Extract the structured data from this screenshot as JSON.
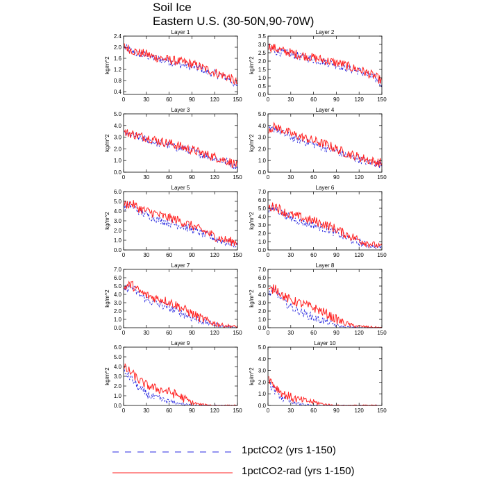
{
  "title": "Soil Ice",
  "subtitle": "Eastern U.S. (30-50N,90-70W)",
  "legend": {
    "series1": "1pctCO2 (yrs 1-150)",
    "series2": "1pctCO2-rad (yrs 1-150)",
    "series1_color": "#2a2ae0",
    "series2_color": "#ff2020",
    "series1_style": "dashed",
    "series2_style": "solid",
    "placement": "bottom"
  },
  "chart_data": [
    {
      "type": "line",
      "title": "Layer 1",
      "ylabel": "kg/m^2",
      "xlabel": "",
      "xlim": [
        0,
        150
      ],
      "ylim": [
        0.3,
        2.4
      ],
      "xticks": [
        0,
        30,
        60,
        90,
        120,
        150
      ],
      "yticks": [
        0.4,
        0.8,
        1.2,
        1.6,
        2.0,
        2.4
      ],
      "ytick_labels": [
        "0.4",
        "0.8",
        "1.2",
        "1.6",
        "2.0",
        "2.4"
      ],
      "x": [
        0,
        10,
        20,
        30,
        40,
        50,
        60,
        70,
        80,
        90,
        100,
        110,
        120,
        130,
        140,
        150
      ],
      "series": [
        {
          "name": "1pctCO2 (yrs 1-150)",
          "values": [
            2.0,
            1.85,
            1.75,
            1.7,
            1.6,
            1.55,
            1.5,
            1.4,
            1.35,
            1.3,
            1.25,
            1.1,
            1.05,
            0.95,
            0.85,
            0.55
          ]
        },
        {
          "name": "1pctCO2-rad (yrs 1-150)",
          "values": [
            2.05,
            1.9,
            1.8,
            1.75,
            1.65,
            1.6,
            1.55,
            1.5,
            1.45,
            1.4,
            1.3,
            1.2,
            1.1,
            1.0,
            0.9,
            0.7
          ]
        }
      ]
    },
    {
      "type": "line",
      "title": "Layer 2",
      "ylabel": "kg/m^2",
      "xlabel": "",
      "xlim": [
        0,
        150
      ],
      "ylim": [
        0,
        3.5
      ],
      "xticks": [
        0,
        30,
        60,
        90,
        120,
        150
      ],
      "yticks": [
        0,
        0.5,
        1,
        1.5,
        2,
        2.5,
        3,
        3.5
      ],
      "ytick_labels": [
        "0.0",
        "0.5",
        "1.0",
        "1.5",
        "2.0",
        "2.5",
        "3.0",
        "3.5"
      ],
      "x": [
        0,
        10,
        20,
        30,
        40,
        50,
        60,
        70,
        80,
        90,
        100,
        110,
        120,
        130,
        140,
        150
      ],
      "series": [
        {
          "name": "1pctCO2 (yrs 1-150)",
          "values": [
            2.8,
            2.6,
            2.5,
            2.4,
            2.3,
            2.2,
            2.1,
            2.0,
            1.9,
            1.8,
            1.6,
            1.5,
            1.4,
            1.2,
            1.0,
            0.6
          ]
        },
        {
          "name": "1pctCO2-rad (yrs 1-150)",
          "values": [
            2.9,
            2.75,
            2.6,
            2.5,
            2.4,
            2.3,
            2.2,
            2.1,
            2.0,
            1.9,
            1.8,
            1.6,
            1.5,
            1.3,
            1.1,
            0.8
          ]
        }
      ]
    },
    {
      "type": "line",
      "title": "Layer 3",
      "ylabel": "kg/m^2",
      "xlabel": "",
      "xlim": [
        0,
        150
      ],
      "ylim": [
        0,
        5
      ],
      "xticks": [
        0,
        30,
        60,
        90,
        120,
        150
      ],
      "yticks": [
        0,
        1,
        2,
        3,
        4,
        5
      ],
      "ytick_labels": [
        "0.0",
        "1.0",
        "2.0",
        "3.0",
        "4.0",
        "5.0"
      ],
      "x": [
        0,
        10,
        20,
        30,
        40,
        50,
        60,
        70,
        80,
        90,
        100,
        110,
        120,
        130,
        140,
        150
      ],
      "series": [
        {
          "name": "1pctCO2 (yrs 1-150)",
          "values": [
            3.3,
            3.2,
            3.0,
            2.8,
            2.6,
            2.4,
            2.3,
            2.1,
            2.0,
            1.8,
            1.6,
            1.4,
            1.2,
            1.0,
            0.8,
            0.4
          ]
        },
        {
          "name": "1pctCO2-rad (yrs 1-150)",
          "values": [
            3.4,
            3.3,
            3.1,
            3.0,
            2.8,
            2.6,
            2.5,
            2.3,
            2.1,
            1.9,
            1.7,
            1.5,
            1.3,
            1.1,
            0.9,
            0.6
          ]
        }
      ]
    },
    {
      "type": "line",
      "title": "Layer 4",
      "ylabel": "kg/m^2",
      "xlabel": "",
      "xlim": [
        0,
        150
      ],
      "ylim": [
        0,
        5
      ],
      "xticks": [
        0,
        30,
        60,
        90,
        120,
        150
      ],
      "yticks": [
        0,
        1,
        2,
        3,
        4,
        5
      ],
      "ytick_labels": [
        "0.0",
        "1.0",
        "2.0",
        "3.0",
        "4.0",
        "5.0"
      ],
      "x": [
        0,
        10,
        20,
        30,
        40,
        50,
        60,
        70,
        80,
        90,
        100,
        110,
        120,
        130,
        140,
        150
      ],
      "series": [
        {
          "name": "1pctCO2 (yrs 1-150)",
          "values": [
            3.5,
            3.8,
            3.3,
            3.0,
            2.8,
            2.6,
            2.4,
            2.2,
            2.0,
            1.8,
            1.5,
            1.3,
            1.1,
            0.9,
            0.8,
            0.6
          ]
        },
        {
          "name": "1pctCO2-rad (yrs 1-150)",
          "values": [
            3.7,
            3.9,
            3.6,
            3.3,
            3.1,
            2.9,
            2.7,
            2.5,
            2.3,
            2.0,
            1.7,
            1.5,
            1.3,
            1.1,
            0.9,
            0.8
          ]
        }
      ]
    },
    {
      "type": "line",
      "title": "Layer 5",
      "ylabel": "kg/m^2",
      "xlabel": "",
      "xlim": [
        0,
        150
      ],
      "ylim": [
        0,
        6
      ],
      "xticks": [
        0,
        30,
        60,
        90,
        120,
        150
      ],
      "yticks": [
        0,
        1,
        2,
        3,
        4,
        5,
        6
      ],
      "ytick_labels": [
        "0.0",
        "1.0",
        "2.0",
        "3.0",
        "4.0",
        "5.0",
        "6.0"
      ],
      "x": [
        0,
        10,
        20,
        30,
        40,
        50,
        60,
        70,
        80,
        90,
        100,
        110,
        120,
        130,
        140,
        150
      ],
      "series": [
        {
          "name": "1pctCO2 (yrs 1-150)",
          "values": [
            4.4,
            4.6,
            4.0,
            3.6,
            3.3,
            3.0,
            2.8,
            2.6,
            2.4,
            2.1,
            1.8,
            1.5,
            1.2,
            0.9,
            0.7,
            0.5
          ]
        },
        {
          "name": "1pctCO2-rad (yrs 1-150)",
          "values": [
            4.6,
            4.8,
            4.3,
            4.0,
            3.8,
            3.5,
            3.3,
            3.1,
            2.8,
            2.5,
            2.1,
            1.8,
            1.4,
            1.1,
            0.9,
            0.8
          ]
        }
      ]
    },
    {
      "type": "line",
      "title": "Layer 6",
      "ylabel": "kg/m^2",
      "xlabel": "",
      "xlim": [
        0,
        150
      ],
      "ylim": [
        0,
        7
      ],
      "xticks": [
        0,
        30,
        60,
        90,
        120,
        150
      ],
      "yticks": [
        0,
        1,
        2,
        3,
        4,
        5,
        6,
        7
      ],
      "ytick_labels": [
        "0.0",
        "1.0",
        "2.0",
        "3.0",
        "4.0",
        "5.0",
        "6.0",
        "7.0"
      ],
      "x": [
        0,
        10,
        20,
        30,
        40,
        50,
        60,
        70,
        80,
        90,
        100,
        110,
        120,
        130,
        140,
        150
      ],
      "series": [
        {
          "name": "1pctCO2 (yrs 1-150)",
          "values": [
            4.8,
            5.0,
            4.3,
            3.8,
            3.5,
            3.2,
            3.0,
            2.7,
            2.4,
            2.0,
            1.6,
            1.2,
            0.9,
            0.6,
            0.4,
            0.3
          ]
        },
        {
          "name": "1pctCO2-rad (yrs 1-150)",
          "values": [
            5.0,
            5.3,
            4.6,
            4.2,
            4.0,
            3.7,
            3.5,
            3.2,
            2.9,
            2.5,
            2.0,
            1.6,
            1.2,
            0.9,
            0.6,
            0.4
          ]
        }
      ]
    },
    {
      "type": "line",
      "title": "Layer 7",
      "ylabel": "kg/m^2",
      "xlabel": "",
      "xlim": [
        0,
        150
      ],
      "ylim": [
        0,
        7
      ],
      "xticks": [
        0,
        30,
        60,
        90,
        120,
        150
      ],
      "yticks": [
        0,
        1,
        2,
        3,
        4,
        5,
        6,
        7
      ],
      "ytick_labels": [
        "0.0",
        "1.0",
        "2.0",
        "3.0",
        "4.0",
        "5.0",
        "6.0",
        "7.0"
      ],
      "x": [
        0,
        10,
        20,
        30,
        40,
        50,
        60,
        70,
        80,
        90,
        100,
        110,
        120,
        130,
        140,
        150
      ],
      "series": [
        {
          "name": "1pctCO2 (yrs 1-150)",
          "values": [
            4.6,
            4.9,
            4.0,
            3.4,
            3.0,
            2.7,
            2.4,
            2.0,
            1.6,
            1.2,
            0.9,
            0.6,
            0.4,
            0.2,
            0.1,
            0.05
          ]
        },
        {
          "name": "1pctCO2-rad (yrs 1-150)",
          "values": [
            4.8,
            5.2,
            4.4,
            3.9,
            3.6,
            3.4,
            3.1,
            2.7,
            2.2,
            1.7,
            1.2,
            0.8,
            0.5,
            0.3,
            0.2,
            0.1
          ]
        }
      ]
    },
    {
      "type": "line",
      "title": "Layer 8",
      "ylabel": "kg/m^2",
      "xlabel": "",
      "xlim": [
        0,
        150
      ],
      "ylim": [
        0,
        7
      ],
      "xticks": [
        0,
        30,
        60,
        90,
        120,
        150
      ],
      "yticks": [
        0,
        1,
        2,
        3,
        4,
        5,
        6,
        7
      ],
      "ytick_labels": [
        "0.0",
        "1.0",
        "2.0",
        "3.0",
        "4.0",
        "5.0",
        "6.0",
        "7.0"
      ],
      "x": [
        0,
        10,
        20,
        30,
        40,
        50,
        60,
        70,
        80,
        90,
        100,
        110,
        120,
        130,
        140,
        150
      ],
      "series": [
        {
          "name": "1pctCO2 (yrs 1-150)",
          "values": [
            4.0,
            4.4,
            3.2,
            2.5,
            2.0,
            1.6,
            1.2,
            0.9,
            0.6,
            0.3,
            0.1,
            0.05,
            0,
            0,
            0,
            0
          ]
        },
        {
          "name": "1pctCO2-rad (yrs 1-150)",
          "values": [
            4.3,
            4.8,
            3.8,
            3.3,
            3.0,
            2.7,
            2.4,
            2.0,
            1.5,
            1.0,
            0.6,
            0.3,
            0.15,
            0.1,
            0.05,
            0
          ]
        }
      ]
    },
    {
      "type": "line",
      "title": "Layer 9",
      "ylabel": "kg/m^2",
      "xlabel": "",
      "xlim": [
        0,
        150
      ],
      "ylim": [
        0,
        6
      ],
      "xticks": [
        0,
        30,
        60,
        90,
        120,
        150
      ],
      "yticks": [
        0,
        1,
        2,
        3,
        4,
        5,
        6
      ],
      "ytick_labels": [
        "0.0",
        "1.0",
        "2.0",
        "3.0",
        "4.0",
        "5.0",
        "6.0"
      ],
      "x": [
        0,
        10,
        20,
        30,
        40,
        50,
        60,
        70,
        80,
        90,
        100,
        110,
        120,
        130,
        140,
        150
      ],
      "series": [
        {
          "name": "1pctCO2 (yrs 1-150)",
          "values": [
            3.5,
            2.8,
            1.8,
            1.2,
            0.8,
            0.6,
            0.4,
            0.25,
            0.1,
            0.05,
            0,
            0,
            0,
            0,
            0,
            0
          ]
        },
        {
          "name": "1pctCO2-rad (yrs 1-150)",
          "values": [
            3.9,
            3.4,
            2.6,
            2.1,
            1.8,
            1.6,
            1.4,
            1.1,
            0.7,
            0.3,
            0.1,
            0.05,
            0,
            0,
            0,
            0
          ]
        }
      ]
    },
    {
      "type": "line",
      "title": "Layer 10",
      "ylabel": "kg/m^2",
      "xlabel": "",
      "xlim": [
        0,
        150
      ],
      "ylim": [
        0,
        5
      ],
      "xticks": [
        0,
        30,
        60,
        90,
        120,
        150
      ],
      "yticks": [
        0,
        1,
        2,
        3,
        4,
        5
      ],
      "ytick_labels": [
        "0.0",
        "1.0",
        "2.0",
        "3.0",
        "4.0",
        "5.0"
      ],
      "x": [
        0,
        10,
        20,
        30,
        40,
        50,
        60,
        70,
        80,
        90,
        100,
        110,
        120,
        130,
        140,
        150
      ],
      "series": [
        {
          "name": "1pctCO2 (yrs 1-150)",
          "values": [
            2.0,
            1.2,
            0.6,
            0.3,
            0.15,
            0.05,
            0,
            0,
            0,
            0,
            0,
            0,
            0,
            0,
            0,
            0
          ]
        },
        {
          "name": "1pctCO2-rad (yrs 1-150)",
          "values": [
            2.4,
            1.6,
            1.0,
            0.7,
            0.5,
            0.4,
            0.3,
            0.15,
            0.05,
            0,
            0,
            0,
            0,
            0,
            0,
            0
          ]
        }
      ]
    }
  ]
}
